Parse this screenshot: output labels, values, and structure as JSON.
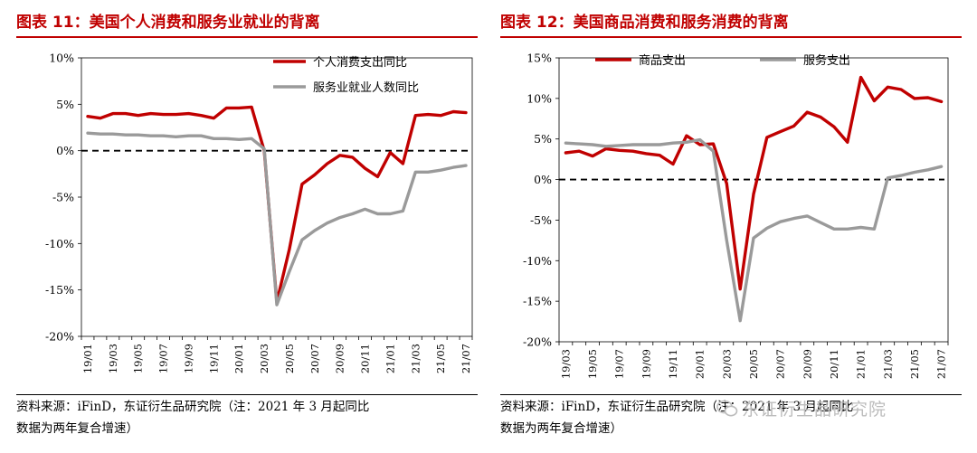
{
  "figures": [
    {
      "title": "图表 11：美国个人消费和服务业就业的背离",
      "source_line1": "资料来源：iFinD，东证衍生品研究院（注：2021 年 3 月起同比",
      "source_line2": "数据为两年复合增速）"
    },
    {
      "title": "图表 12：美国商品消费和服务消费的背离",
      "source_line1": "资料来源：iFinD，东证衍生品研究院（注：2021 年 3 月起同比",
      "source_line2": "数据为两年复合增速）"
    }
  ],
  "watermark": "东证衍生品研究院",
  "chart_data": [
    {
      "type": "line",
      "x": [
        "19/01",
        "19/02",
        "19/03",
        "19/04",
        "19/05",
        "19/06",
        "19/07",
        "19/08",
        "19/09",
        "19/10",
        "19/11",
        "19/12",
        "20/01",
        "20/02",
        "20/03",
        "20/04",
        "20/05",
        "20/06",
        "20/07",
        "20/08",
        "20/09",
        "20/10",
        "20/11",
        "20/12",
        "21/01",
        "21/02",
        "21/03",
        "21/04",
        "21/05",
        "21/06",
        "21/07"
      ],
      "x_tick_labels": [
        "19/01",
        "19/03",
        "19/05",
        "19/07",
        "19/09",
        "19/11",
        "20/01",
        "20/03",
        "20/05",
        "20/07",
        "20/09",
        "20/11",
        "21/01",
        "21/03",
        "21/05",
        "21/07"
      ],
      "y_tick_labels": [
        "10%",
        "5%",
        "0%",
        "-5%",
        "-10%",
        "-15%",
        "-20%"
      ],
      "ylim": [
        -20,
        10
      ],
      "zero_line": "dashed",
      "legend_position": "top-right",
      "series": [
        {
          "name": "个人消费支出同比",
          "color": "#c00000",
          "values": [
            3.7,
            3.5,
            4.0,
            4.0,
            3.8,
            4.0,
            3.9,
            3.9,
            4.0,
            3.8,
            3.5,
            4.6,
            4.6,
            4.7,
            0.0,
            -16.3,
            -10.6,
            -3.6,
            -2.6,
            -1.4,
            -0.5,
            -0.7,
            -1.9,
            -2.8,
            -0.2,
            -1.4,
            3.8,
            3.9,
            3.8,
            4.2,
            4.1
          ]
        },
        {
          "name": "服务业就业人数同比",
          "color": "#9a9a9a",
          "values": [
            1.9,
            1.8,
            1.8,
            1.7,
            1.7,
            1.6,
            1.6,
            1.5,
            1.6,
            1.6,
            1.3,
            1.3,
            1.2,
            1.3,
            0.2,
            -16.6,
            -13.0,
            -9.6,
            -8.6,
            -7.8,
            -7.2,
            -6.8,
            -6.3,
            -6.8,
            -6.8,
            -6.5,
            -2.3,
            -2.3,
            -2.1,
            -1.8,
            -1.6
          ]
        }
      ]
    },
    {
      "type": "line",
      "x": [
        "19/03",
        "19/04",
        "19/05",
        "19/06",
        "19/07",
        "19/08",
        "19/09",
        "19/10",
        "19/11",
        "19/12",
        "20/01",
        "20/02",
        "20/03",
        "20/04",
        "20/05",
        "20/06",
        "20/07",
        "20/08",
        "20/09",
        "20/10",
        "20/11",
        "20/12",
        "21/01",
        "21/02",
        "21/03",
        "21/04",
        "21/05",
        "21/06",
        "21/07"
      ],
      "x_tick_labels": [
        "19/03",
        "19/05",
        "19/07",
        "19/09",
        "19/11",
        "20/01",
        "20/03",
        "20/05",
        "20/07",
        "20/09",
        "20/11",
        "21/01",
        "21/03",
        "21/05",
        "21/07"
      ],
      "y_tick_labels": [
        "15%",
        "10%",
        "5%",
        "0%",
        "-5%",
        "-10%",
        "-15%",
        "-20%"
      ],
      "ylim": [
        -20,
        15
      ],
      "zero_line": "dashed",
      "legend_position": "top",
      "series": [
        {
          "name": "商品支出",
          "color": "#c00000",
          "values": [
            3.3,
            3.5,
            2.9,
            3.8,
            3.6,
            3.5,
            3.2,
            3.0,
            1.9,
            5.4,
            4.3,
            4.4,
            -0.5,
            -13.5,
            -1.8,
            5.2,
            5.9,
            6.6,
            8.3,
            7.7,
            6.5,
            4.6,
            12.6,
            9.7,
            11.4,
            11.1,
            10.0,
            10.1,
            9.6
          ]
        },
        {
          "name": "服务支出",
          "color": "#9a9a9a",
          "values": [
            4.5,
            4.4,
            4.3,
            4.1,
            4.2,
            4.3,
            4.3,
            4.3,
            4.5,
            4.6,
            4.9,
            3.5,
            -7.5,
            -17.4,
            -7.2,
            -6.0,
            -5.2,
            -4.8,
            -4.5,
            -5.3,
            -6.1,
            -6.1,
            -5.9,
            -6.1,
            0.2,
            0.5,
            0.9,
            1.2,
            1.6
          ]
        }
      ]
    }
  ]
}
